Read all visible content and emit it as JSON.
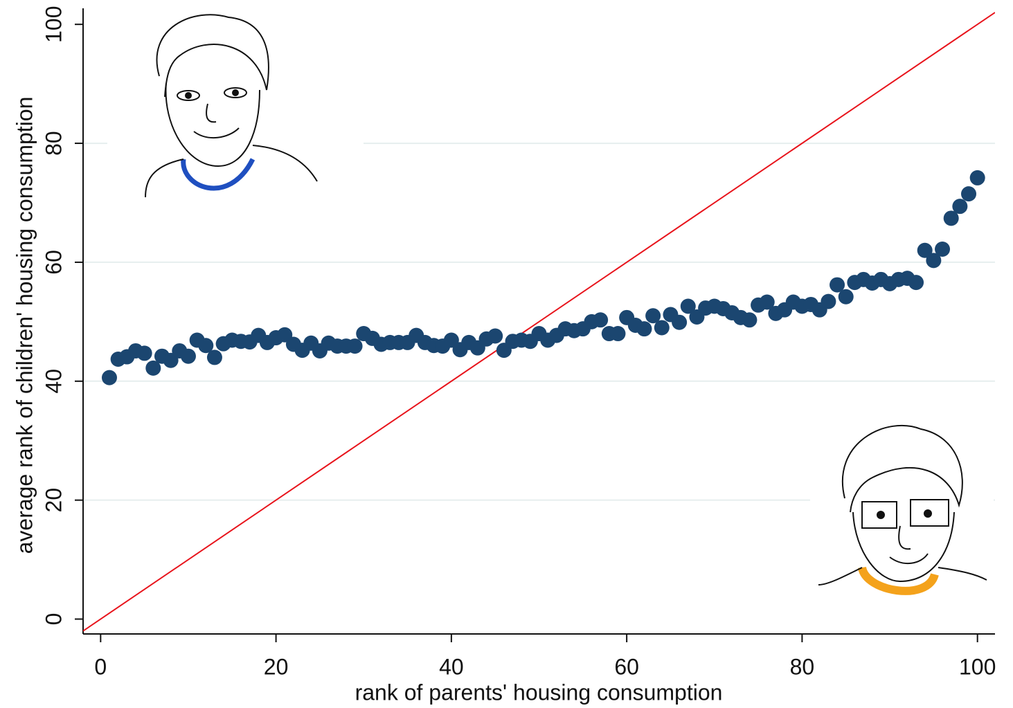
{
  "chart_data": {
    "type": "scatter",
    "x_label": "rank of parents' housing consumption",
    "y_label": "average rank of children' housing consumption",
    "x": [
      1,
      2,
      3,
      4,
      5,
      6,
      7,
      8,
      9,
      10,
      11,
      12,
      13,
      14,
      15,
      16,
      17,
      18,
      19,
      20,
      21,
      22,
      23,
      24,
      25,
      26,
      27,
      28,
      29,
      30,
      31,
      32,
      33,
      34,
      35,
      36,
      37,
      38,
      39,
      40,
      41,
      42,
      43,
      44,
      45,
      46,
      47,
      48,
      49,
      50,
      51,
      52,
      53,
      54,
      55,
      56,
      57,
      58,
      59,
      60,
      61,
      62,
      63,
      64,
      65,
      66,
      67,
      68,
      69,
      70,
      71,
      72,
      73,
      74,
      75,
      76,
      77,
      78,
      79,
      80,
      81,
      82,
      83,
      84,
      85,
      86,
      87,
      88,
      89,
      90,
      91,
      92,
      93,
      94,
      95,
      96,
      97,
      98,
      99,
      100
    ],
    "values": [
      40.6,
      43.7,
      44.1,
      45.1,
      44.7,
      42.2,
      44.2,
      43.5,
      45.1,
      44.2,
      46.9,
      46.0,
      44.0,
      46.3,
      46.9,
      46.7,
      46.6,
      47.7,
      46.5,
      47.3,
      47.8,
      46.2,
      45.2,
      46.4,
      45.1,
      46.4,
      45.9,
      45.9,
      45.9,
      48.0,
      47.2,
      46.2,
      46.5,
      46.5,
      46.5,
      47.7,
      46.5,
      46.0,
      45.9,
      46.9,
      45.3,
      46.5,
      45.6,
      47.1,
      47.6,
      45.2,
      46.7,
      46.9,
      46.7,
      48.0,
      46.9,
      47.7,
      48.8,
      48.5,
      48.8,
      50.0,
      50.3,
      48.0,
      48.0,
      50.7,
      49.4,
      48.8,
      51.0,
      49.0,
      51.2,
      49.9,
      52.6,
      50.8,
      52.3,
      52.6,
      52.2,
      51.5,
      50.7,
      50.3,
      52.8,
      53.3,
      51.4,
      52.0,
      53.3,
      52.6,
      52.9,
      52.0,
      53.4,
      56.2,
      54.2,
      56.6,
      57.1,
      56.5,
      57.1,
      56.4,
      57.1,
      57.3,
      56.6,
      62.0,
      60.3,
      62.2,
      67.4,
      69.4,
      71.5,
      74.2
    ],
    "color": "#1b4670",
    "reference_line": {
      "slope": 1,
      "intercept": 0,
      "color": "#e8141c"
    },
    "xlim": [
      -2,
      102
    ],
    "ylim": [
      -2.5,
      102.7
    ],
    "xticks": [
      0,
      20,
      40,
      60,
      80,
      100
    ],
    "yticks": [
      0,
      20,
      40,
      60,
      80,
      100
    ],
    "grid": true
  }
}
